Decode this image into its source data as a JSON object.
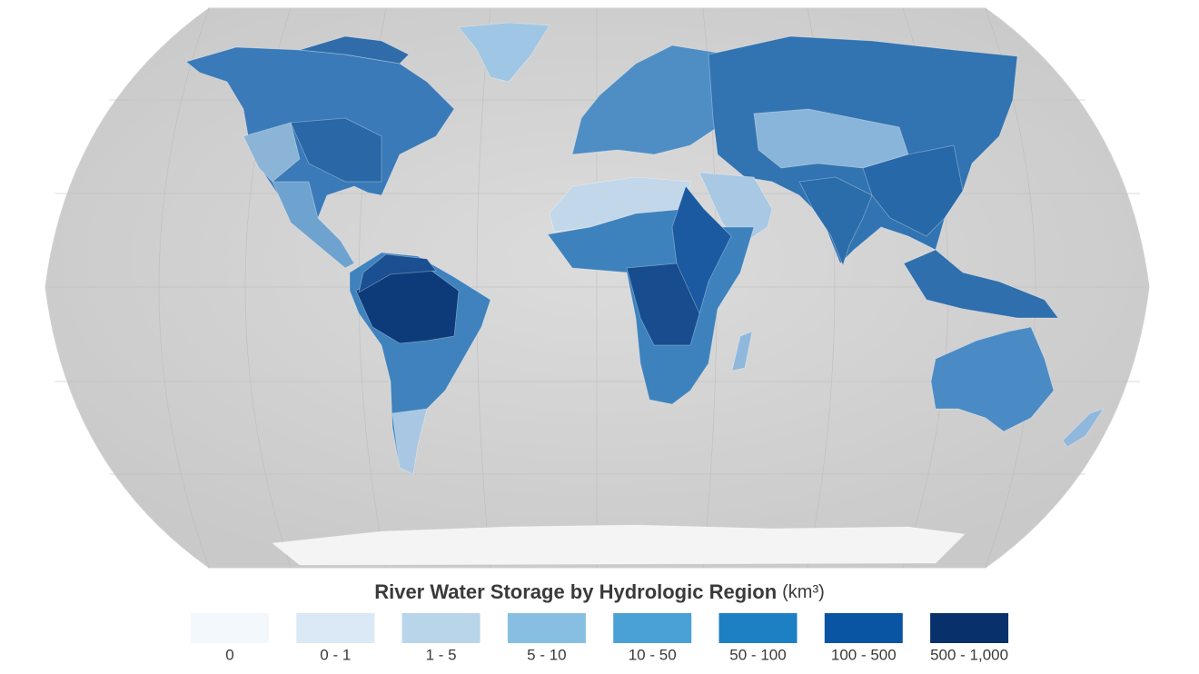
{
  "title": "River Water Storage by Hydrologic Region",
  "unit": "(km³)",
  "legend": [
    {
      "label": "0",
      "color": "#f3f8fd"
    },
    {
      "label": "0 - 1",
      "color": "#dbe9f6"
    },
    {
      "label": "1 - 5",
      "color": "#b9d5ea"
    },
    {
      "label": "5 - 10",
      "color": "#87bfe2"
    },
    {
      "label": "10 - 50",
      "color": "#4aa1d4"
    },
    {
      "label": "50 - 100",
      "color": "#1c80c2"
    },
    {
      "label": "100 - 500",
      "color": "#0a55a3"
    },
    {
      "label": "500 - 1,000",
      "color": "#08306b"
    }
  ]
}
